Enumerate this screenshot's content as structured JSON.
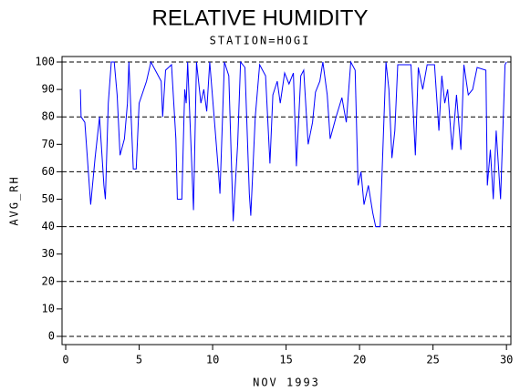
{
  "chart_data": {
    "type": "line",
    "title": "RELATIVE HUMIDITY",
    "subtitle": "STATION=HOGI",
    "x_label": "NOV 1993",
    "y_label": "AVG_RH",
    "xlim": [
      -0.25,
      30.3
    ],
    "ylim": [
      -3,
      102
    ],
    "xticks": [
      0,
      5,
      10,
      15,
      20,
      25,
      30
    ],
    "yticks": [
      0,
      10,
      20,
      30,
      40,
      50,
      60,
      70,
      80,
      90,
      100
    ],
    "ygrid": [
      0,
      20,
      40,
      60,
      80,
      100
    ],
    "series": [
      {
        "color": "#0000ff",
        "x": [
          1.0,
          1.05,
          1.3,
          1.7,
          2.0,
          2.3,
          2.6,
          2.7,
          2.9,
          3.1,
          3.3,
          3.5,
          3.7,
          4.0,
          4.2,
          4.3,
          4.6,
          4.8,
          5.0,
          5.5,
          5.8,
          6.2,
          6.5,
          6.6,
          6.8,
          7.2,
          7.5,
          7.6,
          7.9,
          8.1,
          8.2,
          8.3,
          8.6,
          8.7,
          8.9,
          9.2,
          9.4,
          9.6,
          9.8,
          10.1,
          10.4,
          10.5,
          10.8,
          11.1,
          11.4,
          11.7,
          11.9,
          12.2,
          12.5,
          12.6,
          12.9,
          13.2,
          13.6,
          13.9,
          14.1,
          14.4,
          14.6,
          14.9,
          15.2,
          15.5,
          15.7,
          16.0,
          16.2,
          16.5,
          16.8,
          17.0,
          17.3,
          17.5,
          17.8,
          18.0,
          18.4,
          18.8,
          19.1,
          19.4,
          19.7,
          19.9,
          20.1,
          20.3,
          20.6,
          20.9,
          21.1,
          21.4,
          21.8,
          22.0,
          22.2,
          22.4,
          22.6,
          23.5,
          23.8,
          24.0,
          24.3,
          24.6,
          25.1,
          25.4,
          25.6,
          25.8,
          26.0,
          26.3,
          26.6,
          26.9,
          27.1,
          27.4,
          27.7,
          28.0,
          28.6,
          28.7,
          28.9,
          29.1,
          29.3,
          29.6,
          29.9,
          30.0
        ],
        "values": [
          90,
          80,
          78,
          48,
          65,
          80,
          55,
          50,
          85,
          100,
          100,
          88,
          66,
          72,
          85,
          100,
          61,
          61,
          85,
          93,
          100,
          96,
          93,
          80,
          97,
          99,
          72,
          50,
          50,
          90,
          85,
          100,
          60,
          46,
          100,
          85,
          90,
          82,
          100,
          80,
          60,
          52,
          100,
          95,
          42,
          70,
          100,
          98,
          52,
          44,
          80,
          99,
          95,
          63,
          88,
          93,
          85,
          96,
          92,
          96,
          62,
          95,
          97,
          70,
          78,
          89,
          93,
          100,
          88,
          72,
          80,
          87,
          78,
          100,
          97,
          55,
          60,
          48,
          55,
          45,
          40,
          40,
          100,
          90,
          65,
          75,
          99,
          99,
          66,
          98,
          90,
          99,
          99,
          75,
          95,
          85,
          90,
          68,
          88,
          68,
          99,
          88,
          90,
          98,
          97,
          55,
          68,
          50,
          75,
          50,
          99,
          100
        ]
      }
    ]
  }
}
